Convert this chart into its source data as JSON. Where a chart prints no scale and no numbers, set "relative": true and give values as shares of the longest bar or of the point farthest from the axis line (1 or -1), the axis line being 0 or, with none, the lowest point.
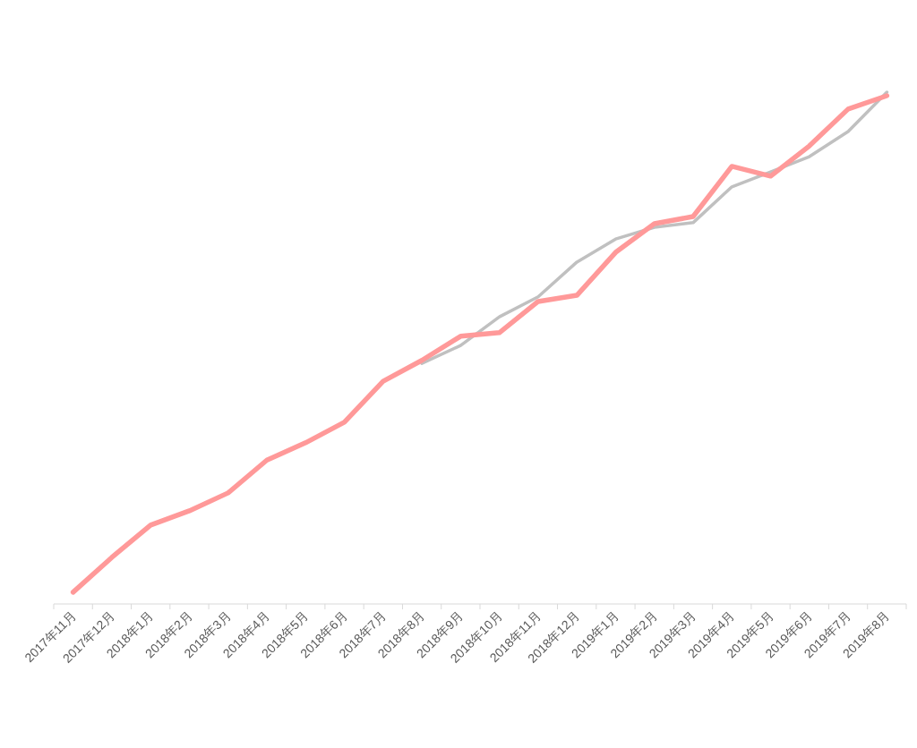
{
  "chart_data": {
    "type": "line",
    "relative": true,
    "categories": [
      "2017年11月",
      "2017年12月",
      "2018年1月",
      "2018年2月",
      "2018年3月",
      "2018年4月",
      "2018年5月",
      "2018年6月",
      "2018年7月",
      "2018年8月",
      "2018年9月",
      "2018年10月",
      "2018年11月",
      "2018年12月",
      "2019年1月",
      "2019年2月",
      "2019年3月",
      "2019年4月",
      "2019年5月",
      "2019年6月",
      "2019年7月",
      "2019年8月"
    ],
    "series": [
      {
        "color": "#c0c0c0",
        "values": [
          null,
          null,
          null,
          null,
          null,
          null,
          null,
          null,
          null,
          0.47,
          0.505,
          0.561,
          0.6,
          0.668,
          0.713,
          0.736,
          0.745,
          0.815,
          0.844,
          0.874,
          0.923,
          1
        ]
      },
      {
        "color": "#ff9999",
        "values": [
          0.023,
          0.091,
          0.154,
          0.182,
          0.217,
          0.281,
          0.315,
          0.355,
          0.435,
          0.476,
          0.523,
          0.53,
          0.591,
          0.603,
          0.687,
          0.743,
          0.757,
          0.855,
          0.836,
          0.895,
          0.967,
          0.993
        ]
      }
    ]
  }
}
